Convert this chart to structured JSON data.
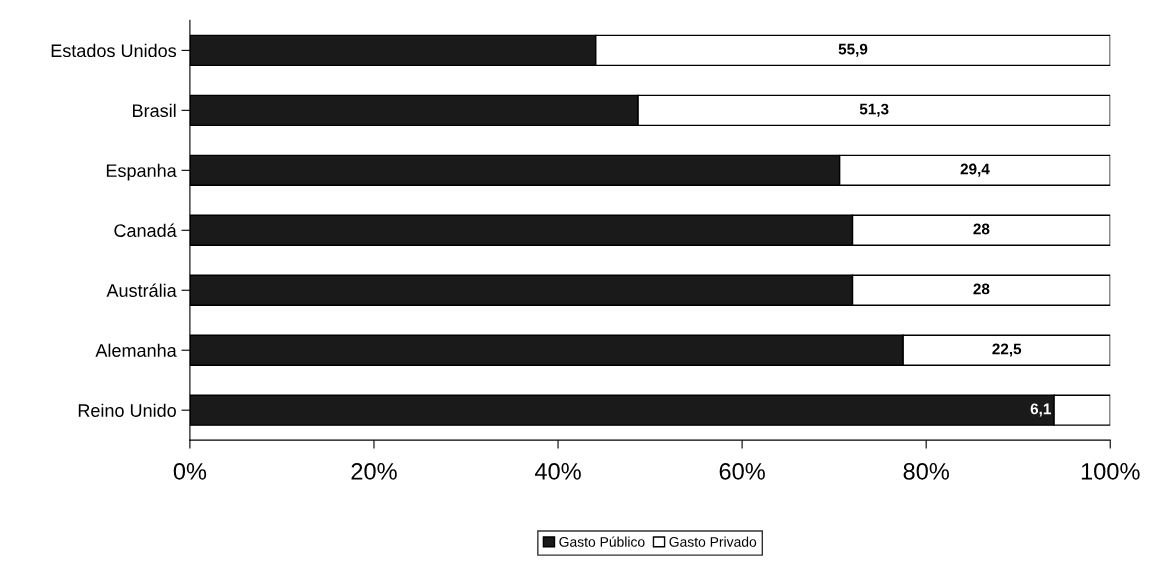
{
  "chart_data": {
    "type": "bar",
    "orientation": "horizontal",
    "stacked": true,
    "categories": [
      "Estados Unidos",
      "Brasil",
      "Espanha",
      "Canadá",
      "Austrália",
      "Alemanha",
      "Reino Unido"
    ],
    "series": [
      {
        "name": "Gasto Público",
        "color": "#1a1a1a",
        "values": [
          44.1,
          48.7,
          70.6,
          72,
          72,
          77.5,
          93.9
        ]
      },
      {
        "name": "Gasto Privado",
        "color": "#ffffff",
        "values": [
          55.9,
          51.3,
          29.4,
          28,
          28,
          22.5,
          6.1
        ],
        "value_labels": [
          "55,9",
          "51,3",
          "29,4",
          "28",
          "28",
          "22,5",
          "6,1"
        ]
      }
    ],
    "xlim": [
      0,
      100
    ],
    "xticks": [
      {
        "value": 0,
        "label": "0%"
      },
      {
        "value": 20,
        "label": "20%"
      },
      {
        "value": 40,
        "label": "40%"
      },
      {
        "value": 60,
        "label": "60%"
      },
      {
        "value": 80,
        "label": "80%"
      },
      {
        "value": 100,
        "label": "100%"
      }
    ],
    "grid": false,
    "legend": "bottom"
  }
}
